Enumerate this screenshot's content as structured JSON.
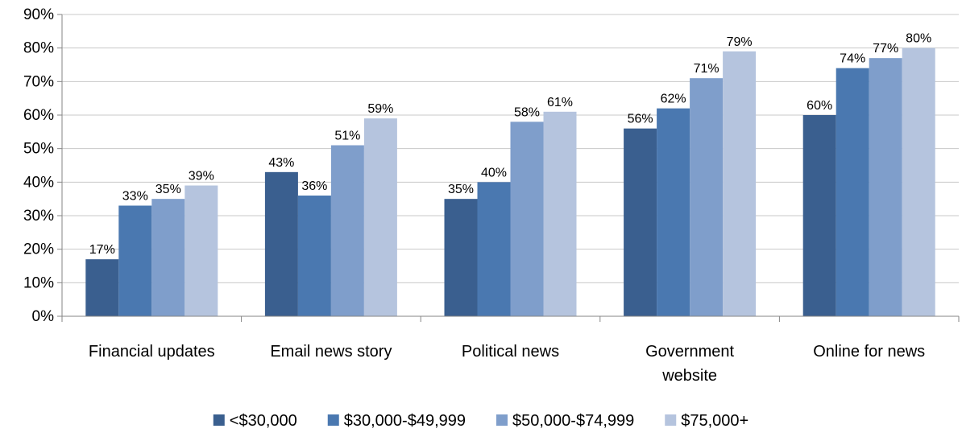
{
  "chart_data": {
    "type": "bar",
    "categories": [
      [
        "Financial updates"
      ],
      [
        "Email news story"
      ],
      [
        "Political news"
      ],
      [
        "Government",
        "website"
      ],
      [
        "Online for news"
      ]
    ],
    "series": [
      {
        "name": "<$30,000",
        "color": "#3a5f8f",
        "values": [
          17,
          43,
          35,
          56,
          60
        ]
      },
      {
        "name": "$30,000-$49,999",
        "color": "#4a78b0",
        "values": [
          33,
          36,
          40,
          62,
          74
        ]
      },
      {
        "name": "$50,000-$74,999",
        "color": "#7f9ecb",
        "values": [
          35,
          51,
          58,
          71,
          77
        ]
      },
      {
        "name": "$75,000+",
        "color": "#b5c4de",
        "values": [
          39,
          59,
          61,
          79,
          80
        ]
      }
    ],
    "ylim": [
      0,
      90
    ],
    "yticks": [
      "0%",
      "10%",
      "20%",
      "30%",
      "40%",
      "50%",
      "60%",
      "70%",
      "80%",
      "90%"
    ],
    "value_suffix": "%",
    "grid": true,
    "legend_position": "bottom"
  }
}
